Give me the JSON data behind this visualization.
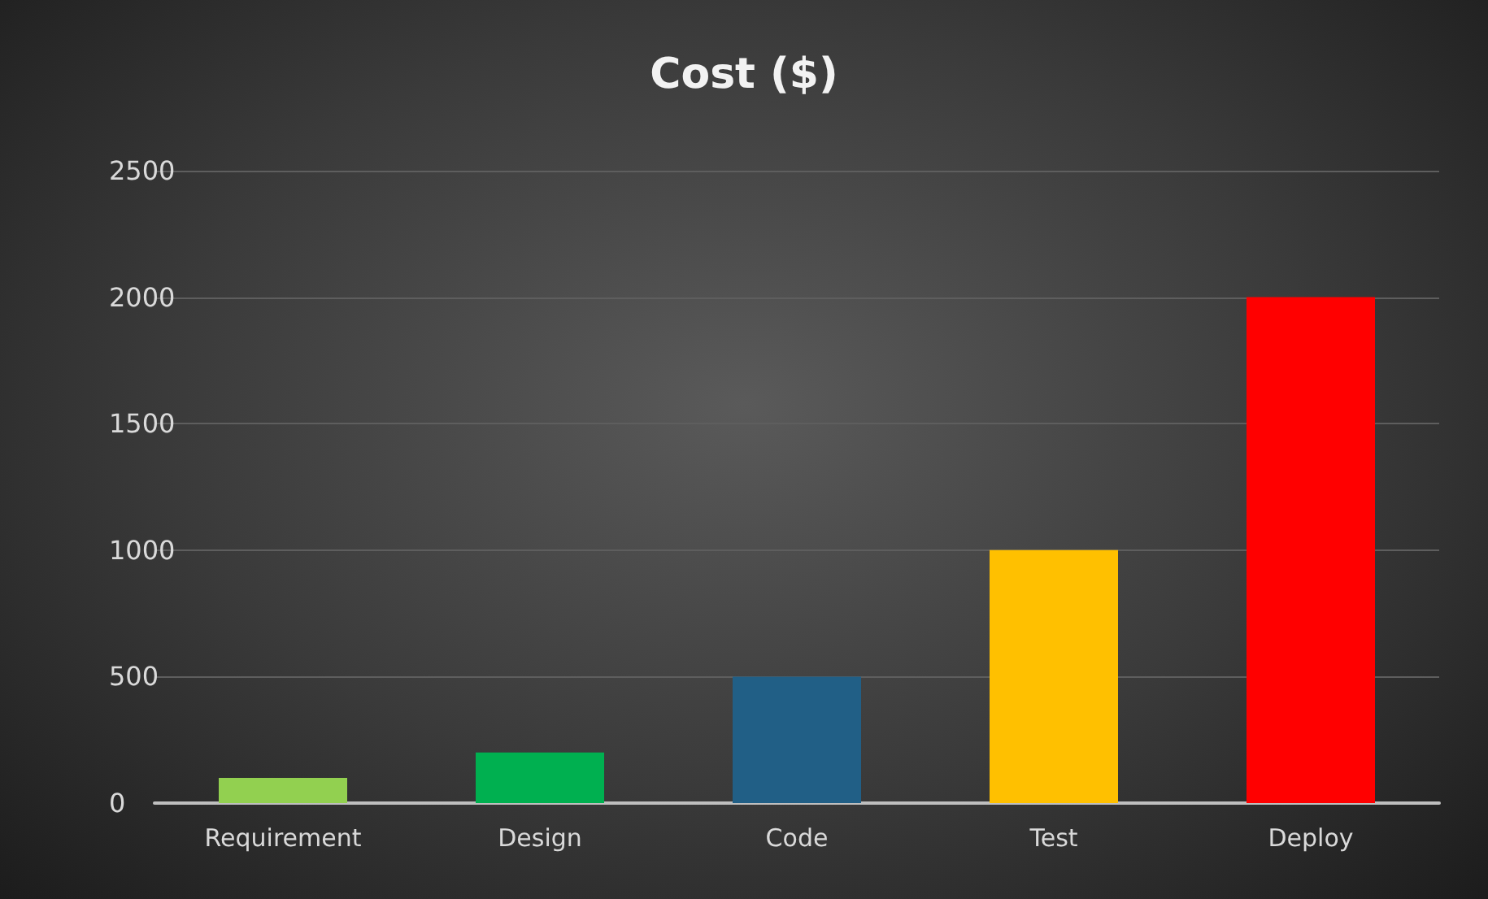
{
  "chart_data": {
    "type": "bar",
    "title": "Cost ($)",
    "categories": [
      "Requirement",
      "Design",
      "Code",
      "Test",
      "Deploy"
    ],
    "values": [
      100,
      200,
      500,
      1000,
      2000
    ],
    "colors": [
      "#92d050",
      "#00b050",
      "#215f86",
      "#ffc000",
      "#ff0000"
    ],
    "ylim": [
      0,
      2500
    ],
    "yticks": [
      0,
      500,
      1000,
      1500,
      2000,
      2500
    ],
    "grid": "y"
  }
}
